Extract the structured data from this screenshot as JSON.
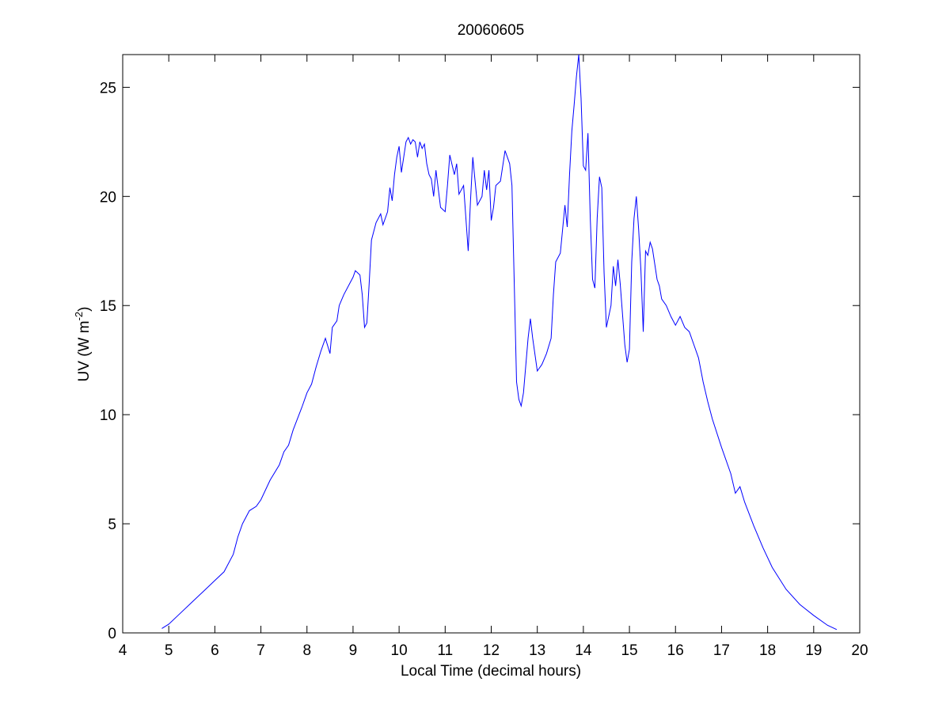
{
  "chart_data": {
    "type": "line",
    "title": "20060605",
    "xlabel": "Local Time (decimal hours)",
    "ylabel": {
      "text": "UV (W m",
      "superscript": "-2",
      "suffix": ")"
    },
    "xlim": [
      4,
      20
    ],
    "ylim": [
      0,
      26.5
    ],
    "xticks": [
      4,
      5,
      6,
      7,
      8,
      9,
      10,
      11,
      12,
      13,
      14,
      15,
      16,
      17,
      18,
      19,
      20
    ],
    "yticks": [
      0,
      5,
      10,
      15,
      20,
      25
    ],
    "grid": false,
    "series": [
      {
        "color": "#0000ff",
        "x": [
          4.85,
          5.0,
          5.2,
          5.5,
          5.8,
          6.0,
          6.2,
          6.4,
          6.5,
          6.6,
          6.75,
          6.9,
          7.0,
          7.2,
          7.4,
          7.5,
          7.6,
          7.7,
          7.9,
          8.0,
          8.1,
          8.2,
          8.3,
          8.4,
          8.5,
          8.55,
          8.65,
          8.7,
          8.8,
          9.0,
          9.05,
          9.15,
          9.2,
          9.25,
          9.3,
          9.35,
          9.4,
          9.5,
          9.6,
          9.65,
          9.75,
          9.8,
          9.85,
          9.9,
          9.95,
          10.0,
          10.05,
          10.1,
          10.15,
          10.2,
          10.25,
          10.3,
          10.35,
          10.4,
          10.45,
          10.5,
          10.55,
          10.6,
          10.65,
          10.7,
          10.75,
          10.8,
          10.9,
          11.0,
          11.05,
          11.1,
          11.2,
          11.25,
          11.3,
          11.4,
          11.45,
          11.5,
          11.55,
          11.6,
          11.7,
          11.8,
          11.85,
          11.9,
          11.95,
          12.0,
          12.05,
          12.1,
          12.2,
          12.3,
          12.4,
          12.45,
          12.5,
          12.55,
          12.6,
          12.65,
          12.7,
          12.8,
          12.85,
          12.9,
          13.0,
          13.1,
          13.2,
          13.3,
          13.35,
          13.4,
          13.5,
          13.6,
          13.65,
          13.7,
          13.75,
          13.8,
          13.85,
          13.9,
          13.95,
          14.0,
          14.05,
          14.1,
          14.15,
          14.2,
          14.25,
          14.3,
          14.35,
          14.4,
          14.45,
          14.5,
          14.6,
          14.65,
          14.7,
          14.75,
          14.8,
          14.9,
          14.95,
          15.0,
          15.05,
          15.1,
          15.15,
          15.2,
          15.25,
          15.3,
          15.35,
          15.4,
          15.45,
          15.5,
          15.6,
          15.65,
          15.7,
          15.8,
          15.9,
          16.0,
          16.1,
          16.2,
          16.3,
          16.4,
          16.5,
          16.6,
          16.7,
          16.8,
          17.0,
          17.2,
          17.3,
          17.4,
          17.5,
          17.7,
          17.9,
          18.1,
          18.4,
          18.7,
          19.0,
          19.3,
          19.5
        ],
        "values": [
          0.2,
          0.4,
          0.8,
          1.4,
          2.0,
          2.4,
          2.8,
          3.6,
          4.4,
          5.0,
          5.6,
          5.8,
          6.1,
          7.0,
          7.7,
          8.3,
          8.6,
          9.3,
          10.4,
          11.0,
          11.4,
          12.2,
          12.9,
          13.5,
          12.8,
          14.0,
          14.3,
          15.0,
          15.5,
          16.3,
          16.6,
          16.4,
          15.5,
          14.0,
          14.2,
          16.0,
          18.0,
          18.8,
          19.2,
          18.7,
          19.3,
          20.4,
          19.8,
          21.0,
          21.8,
          22.3,
          21.1,
          21.8,
          22.5,
          22.7,
          22.4,
          22.6,
          22.5,
          21.8,
          22.5,
          22.2,
          22.4,
          21.5,
          21.0,
          20.8,
          20.0,
          21.2,
          19.5,
          19.3,
          20.5,
          21.9,
          21.0,
          21.5,
          20.1,
          20.5,
          19.0,
          17.5,
          19.8,
          21.8,
          19.6,
          20.0,
          21.2,
          20.3,
          21.2,
          18.9,
          19.5,
          20.5,
          20.7,
          22.1,
          21.5,
          20.5,
          16.0,
          11.5,
          10.7,
          10.4,
          11.0,
          13.5,
          14.4,
          13.5,
          12.0,
          12.3,
          12.8,
          13.5,
          15.5,
          17.0,
          17.4,
          19.6,
          18.6,
          21.0,
          23.0,
          24.2,
          25.5,
          26.5,
          24.5,
          21.4,
          21.2,
          22.9,
          19.0,
          16.2,
          15.8,
          19.0,
          20.9,
          20.4,
          16.5,
          14.0,
          15.0,
          16.8,
          15.9,
          17.1,
          16.0,
          13.2,
          12.4,
          13.0,
          17.0,
          19.0,
          20.0,
          18.5,
          16.6,
          13.8,
          17.5,
          17.3,
          17.9,
          17.6,
          16.2,
          15.9,
          15.3,
          15.0,
          14.5,
          14.1,
          14.5,
          14.0,
          13.8,
          13.2,
          12.6,
          11.5,
          10.6,
          9.8,
          8.5,
          7.3,
          6.4,
          6.7,
          6.0,
          4.9,
          3.9,
          3.0,
          2.0,
          1.3,
          0.8,
          0.35,
          0.15
        ]
      }
    ]
  }
}
